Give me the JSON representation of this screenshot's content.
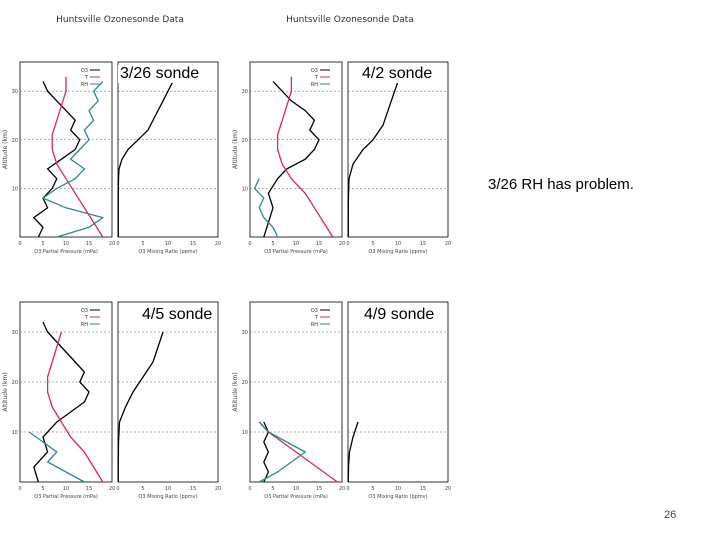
{
  "slide": {
    "note": "3/26 RH has problem.",
    "page_number": "26"
  },
  "panels": [
    {
      "caption": "3/26 sonde",
      "title": "Huntsville Ozonesonde Data"
    },
    {
      "caption": "4/2 sonde",
      "title": "Huntsville Ozonesonde Data"
    },
    {
      "caption": "4/5 sonde",
      "title": ""
    },
    {
      "caption": "4/9 sonde",
      "title": ""
    }
  ],
  "colors": {
    "ozone": "#000000",
    "temperature": "#e0245e",
    "rh": "#2a8a8a",
    "dashed": "#666666"
  },
  "chart_data": [
    {
      "type": "line",
      "title": "Huntsville Ozonesonde Data",
      "ylabel": "Altitude (km)",
      "ylim": [
        0,
        36
      ],
      "left_plot": {
        "xlim": [
          0,
          20
        ],
        "xlabel": "O3 Partial Pressure (mPa)",
        "series": [
          {
            "name": "O3",
            "color": "#000000",
            "points": [
              [
                4,
                0
              ],
              [
                5,
                2
              ],
              [
                3,
                4
              ],
              [
                6,
                6
              ],
              [
                5,
                8
              ],
              [
                7,
                10
              ],
              [
                8,
                12
              ],
              [
                6,
                14
              ],
              [
                9,
                16
              ],
              [
                12,
                18
              ],
              [
                13,
                20
              ],
              [
                11,
                22
              ],
              [
                12,
                24
              ],
              [
                10,
                26
              ],
              [
                8,
                28
              ],
              [
                6,
                30
              ],
              [
                5,
                32
              ]
            ]
          },
          {
            "name": "T",
            "color": "#e0245e",
            "points": [
              [
                18,
                0
              ],
              [
                16,
                3
              ],
              [
                14,
                6
              ],
              [
                12,
                9
              ],
              [
                10,
                12
              ],
              [
                8,
                15
              ],
              [
                7,
                18
              ],
              [
                7,
                21
              ],
              [
                8,
                24
              ],
              [
                9,
                27
              ],
              [
                10,
                30
              ],
              [
                10,
                33
              ]
            ]
          },
          {
            "name": "RH",
            "color": "#2a8a8a",
            "points": [
              [
                8,
                0
              ],
              [
                15,
                2
              ],
              [
                18,
                4
              ],
              [
                10,
                6
              ],
              [
                5,
                8
              ],
              [
                8,
                10
              ],
              [
                12,
                12
              ],
              [
                14,
                14
              ],
              [
                11,
                16
              ],
              [
                13,
                18
              ],
              [
                15,
                20
              ],
              [
                14,
                22
              ],
              [
                16,
                24
              ],
              [
                15,
                26
              ],
              [
                17,
                28
              ],
              [
                16,
                30
              ],
              [
                18,
                32
              ]
            ]
          }
        ]
      },
      "right_plot": {
        "xlim": [
          0,
          20
        ],
        "xlabel": "O3 Mixing Ratio (ppmv)",
        "series": [
          {
            "name": "O3 mixing ratio",
            "color": "#000000",
            "points": [
              [
                0.05,
                0
              ],
              [
                0.06,
                4
              ],
              [
                0.07,
                8
              ],
              [
                0.1,
                12
              ],
              [
                0.2,
                14
              ],
              [
                0.8,
                16
              ],
              [
                2,
                18
              ],
              [
                4,
                20
              ],
              [
                6,
                22
              ],
              [
                7,
                24
              ],
              [
                8,
                26
              ],
              [
                9,
                28
              ],
              [
                10,
                30
              ],
              [
                11,
                32
              ]
            ]
          }
        ]
      }
    },
    {
      "type": "line",
      "title": "Huntsville Ozonesonde Data",
      "ylabel": "Altitude (km)",
      "ylim": [
        0,
        36
      ],
      "left_plot": {
        "xlim": [
          0,
          20
        ],
        "xlabel": "O3 Partial Pressure (mPa)",
        "series": [
          {
            "name": "O3",
            "color": "#000000",
            "points": [
              [
                3,
                0
              ],
              [
                4,
                3
              ],
              [
                5,
                6
              ],
              [
                4,
                9
              ],
              [
                6,
                12
              ],
              [
                8,
                14
              ],
              [
                12,
                16
              ],
              [
                14,
                18
              ],
              [
                15,
                20
              ],
              [
                13,
                22
              ],
              [
                14,
                24
              ],
              [
                12,
                26
              ],
              [
                9,
                28
              ],
              [
                7,
                30
              ],
              [
                5,
                32
              ]
            ]
          },
          {
            "name": "T",
            "color": "#e0245e",
            "points": [
              [
                18,
                0
              ],
              [
                16,
                3
              ],
              [
                14,
                6
              ],
              [
                12,
                9
              ],
              [
                9,
                12
              ],
              [
                7,
                15
              ],
              [
                6,
                18
              ],
              [
                6,
                21
              ],
              [
                7,
                24
              ],
              [
                8,
                27
              ],
              [
                9,
                30
              ],
              [
                9,
                33
              ]
            ]
          },
          {
            "name": "RH",
            "color": "#2a8a8a",
            "points": [
              [
                6,
                0
              ],
              [
                5,
                2
              ],
              [
                3,
                4
              ],
              [
                2,
                6
              ],
              [
                3,
                8
              ],
              [
                1,
                10
              ],
              [
                2,
                12
              ]
            ]
          }
        ]
      },
      "right_plot": {
        "xlim": [
          0,
          20
        ],
        "xlabel": "O3 Mixing Ratio (ppmv)",
        "series": [
          {
            "name": "O3 mixing ratio",
            "color": "#000000",
            "points": [
              [
                0.05,
                0
              ],
              [
                0.06,
                4
              ],
              [
                0.08,
                8
              ],
              [
                0.2,
                12
              ],
              [
                1,
                15
              ],
              [
                3,
                18
              ],
              [
                5,
                20
              ],
              [
                7,
                23
              ],
              [
                8,
                26
              ],
              [
                9,
                29
              ],
              [
                10,
                32
              ]
            ]
          }
        ]
      }
    },
    {
      "type": "line",
      "title": "",
      "ylabel": "Altitude (km)",
      "ylim": [
        0,
        36
      ],
      "left_plot": {
        "xlim": [
          0,
          20
        ],
        "xlabel": "O3 Partial Pressure (mPa)",
        "series": [
          {
            "name": "O3",
            "color": "#000000",
            "points": [
              [
                4,
                0
              ],
              [
                3,
                3
              ],
              [
                6,
                6
              ],
              [
                5,
                9
              ],
              [
                8,
                12
              ],
              [
                11,
                14
              ],
              [
                14,
                16
              ],
              [
                15,
                18
              ],
              [
                13,
                20
              ],
              [
                14,
                22
              ],
              [
                12,
                24
              ],
              [
                10,
                26
              ],
              [
                8,
                28
              ],
              [
                6,
                30
              ],
              [
                5,
                32
              ]
            ]
          },
          {
            "name": "T",
            "color": "#e0245e",
            "points": [
              [
                18,
                0
              ],
              [
                16,
                3
              ],
              [
                14,
                6
              ],
              [
                11,
                9
              ],
              [
                9,
                12
              ],
              [
                7,
                15
              ],
              [
                6,
                18
              ],
              [
                6,
                21
              ],
              [
                7,
                24
              ],
              [
                8,
                27
              ],
              [
                9,
                30
              ]
            ]
          },
          {
            "name": "RH",
            "color": "#2a8a8a",
            "points": [
              [
                14,
                0
              ],
              [
                10,
                2
              ],
              [
                6,
                4
              ],
              [
                8,
                6
              ],
              [
                5,
                8
              ],
              [
                2,
                10
              ]
            ]
          }
        ]
      },
      "right_plot": {
        "xlim": [
          0,
          20
        ],
        "xlabel": "O3 Mixing Ratio (ppmv)",
        "series": [
          {
            "name": "O3 mixing ratio",
            "color": "#000000",
            "points": [
              [
                0.05,
                0
              ],
              [
                0.07,
                4
              ],
              [
                0.1,
                8
              ],
              [
                0.3,
                12
              ],
              [
                1.5,
                15
              ],
              [
                3,
                18
              ],
              [
                5,
                21
              ],
              [
                7,
                24
              ],
              [
                8,
                27
              ],
              [
                9,
                30
              ]
            ]
          }
        ]
      }
    },
    {
      "type": "line",
      "title": "",
      "ylabel": "Altitude (km)",
      "ylim": [
        0,
        36
      ],
      "left_plot": {
        "xlim": [
          0,
          20
        ],
        "xlabel": "O3 Partial Pressure (mPa)",
        "series": [
          {
            "name": "O3",
            "color": "#000000",
            "points": [
              [
                3,
                0
              ],
              [
                4,
                2
              ],
              [
                3,
                4
              ],
              [
                4,
                6
              ],
              [
                3,
                8
              ],
              [
                4,
                10
              ],
              [
                3,
                12
              ]
            ]
          },
          {
            "name": "T",
            "color": "#e0245e",
            "points": [
              [
                2,
                12
              ],
              [
                4,
                10
              ],
              [
                7,
                8
              ],
              [
                10,
                6
              ],
              [
                13,
                4
              ],
              [
                16,
                2
              ],
              [
                19,
                0
              ]
            ]
          },
          {
            "name": "RH",
            "color": "#2a8a8a",
            "points": [
              [
                2,
                0
              ],
              [
                6,
                2
              ],
              [
                9,
                4
              ],
              [
                12,
                6
              ],
              [
                8,
                8
              ],
              [
                4,
                10
              ],
              [
                2,
                12
              ]
            ]
          }
        ]
      },
      "right_plot": {
        "xlim": [
          0,
          20
        ],
        "xlabel": "O3 Mixing Ratio (ppmv)",
        "series": [
          {
            "name": "O3 mixing ratio",
            "color": "#000000",
            "points": [
              [
                0.05,
                0
              ],
              [
                0.1,
                3
              ],
              [
                0.3,
                6
              ],
              [
                1,
                9
              ],
              [
                2,
                12
              ]
            ]
          }
        ]
      }
    }
  ]
}
